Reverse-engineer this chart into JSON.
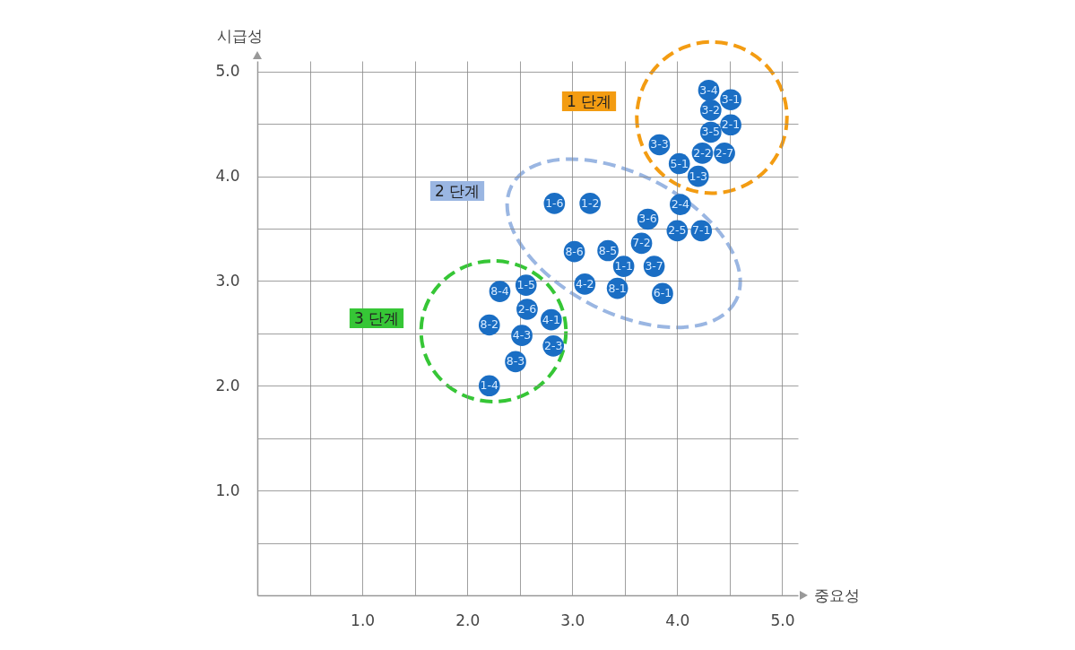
{
  "chart_data": {
    "type": "scatter",
    "xlabel": "중요성",
    "ylabel": "시급성",
    "xlim": [
      0,
      5.15
    ],
    "ylim": [
      0,
      5.1
    ],
    "xticks": [
      {
        "value": 0.5,
        "label": null
      },
      {
        "value": 1,
        "label": "1.0"
      },
      {
        "value": 1.5,
        "label": null
      },
      {
        "value": 2,
        "label": "2.0"
      },
      {
        "value": 2.5,
        "label": null
      },
      {
        "value": 3,
        "label": "3.0"
      },
      {
        "value": 3.5,
        "label": null
      },
      {
        "value": 4,
        "label": "4.0"
      },
      {
        "value": 4.5,
        "label": null
      },
      {
        "value": 5,
        "label": "5.0"
      }
    ],
    "yticks": [
      {
        "value": 0.5,
        "label": null
      },
      {
        "value": 1,
        "label": "1.0"
      },
      {
        "value": 1.5,
        "label": null
      },
      {
        "value": 2,
        "label": "2.0"
      },
      {
        "value": 2.5,
        "label": null
      },
      {
        "value": 3,
        "label": "3.0"
      },
      {
        "value": 3.5,
        "label": null
      },
      {
        "value": 4,
        "label": "4.0"
      },
      {
        "value": 4.5,
        "label": null
      },
      {
        "value": 5,
        "label": "5.0"
      }
    ],
    "grid": true,
    "marker": "circle",
    "series": [
      {
        "color": "#1a6ec4",
        "x": [
          4.3,
          4.51,
          4.32,
          4.51,
          4.32,
          3.83,
          4.24,
          4.45,
          4.02,
          4.2,
          4.03,
          2.83,
          3.17,
          3.72,
          4.0,
          4.23,
          3.66,
          3.02,
          3.34,
          3.49,
          3.78,
          3.12,
          3.43,
          3.86,
          2.56,
          2.31,
          2.57,
          2.8,
          2.21,
          2.52,
          2.82,
          2.46,
          2.21
        ],
        "values": [
          4.82,
          4.73,
          4.63,
          4.49,
          4.42,
          4.3,
          4.22,
          4.22,
          4.12,
          4.0,
          3.73,
          3.74,
          3.74,
          3.59,
          3.48,
          3.48,
          3.36,
          3.28,
          3.29,
          3.14,
          3.14,
          2.97,
          2.93,
          2.88,
          2.96,
          2.9,
          2.73,
          2.63,
          2.58,
          2.48,
          2.38,
          2.23,
          2.0
        ],
        "value_labels": [
          "3-4",
          "3-1",
          "3-2",
          "2-1",
          "3-5",
          "3-3",
          "2-2",
          "2-7",
          "5-1",
          "1-3",
          "2-4",
          "1-6",
          "1-2",
          "3-6",
          "2-5",
          "7-1",
          "7-2",
          "8-6",
          "8-5",
          "1-1",
          "3-7",
          "4-2",
          "8-1",
          "6-1",
          "1-5",
          "8-4",
          "2-6",
          "4-1",
          "8-2",
          "4-3",
          "2-3",
          "8-3",
          "1-4"
        ]
      }
    ],
    "annotations": [
      "1 단계",
      "2 단계",
      "3 단계"
    ]
  }
}
